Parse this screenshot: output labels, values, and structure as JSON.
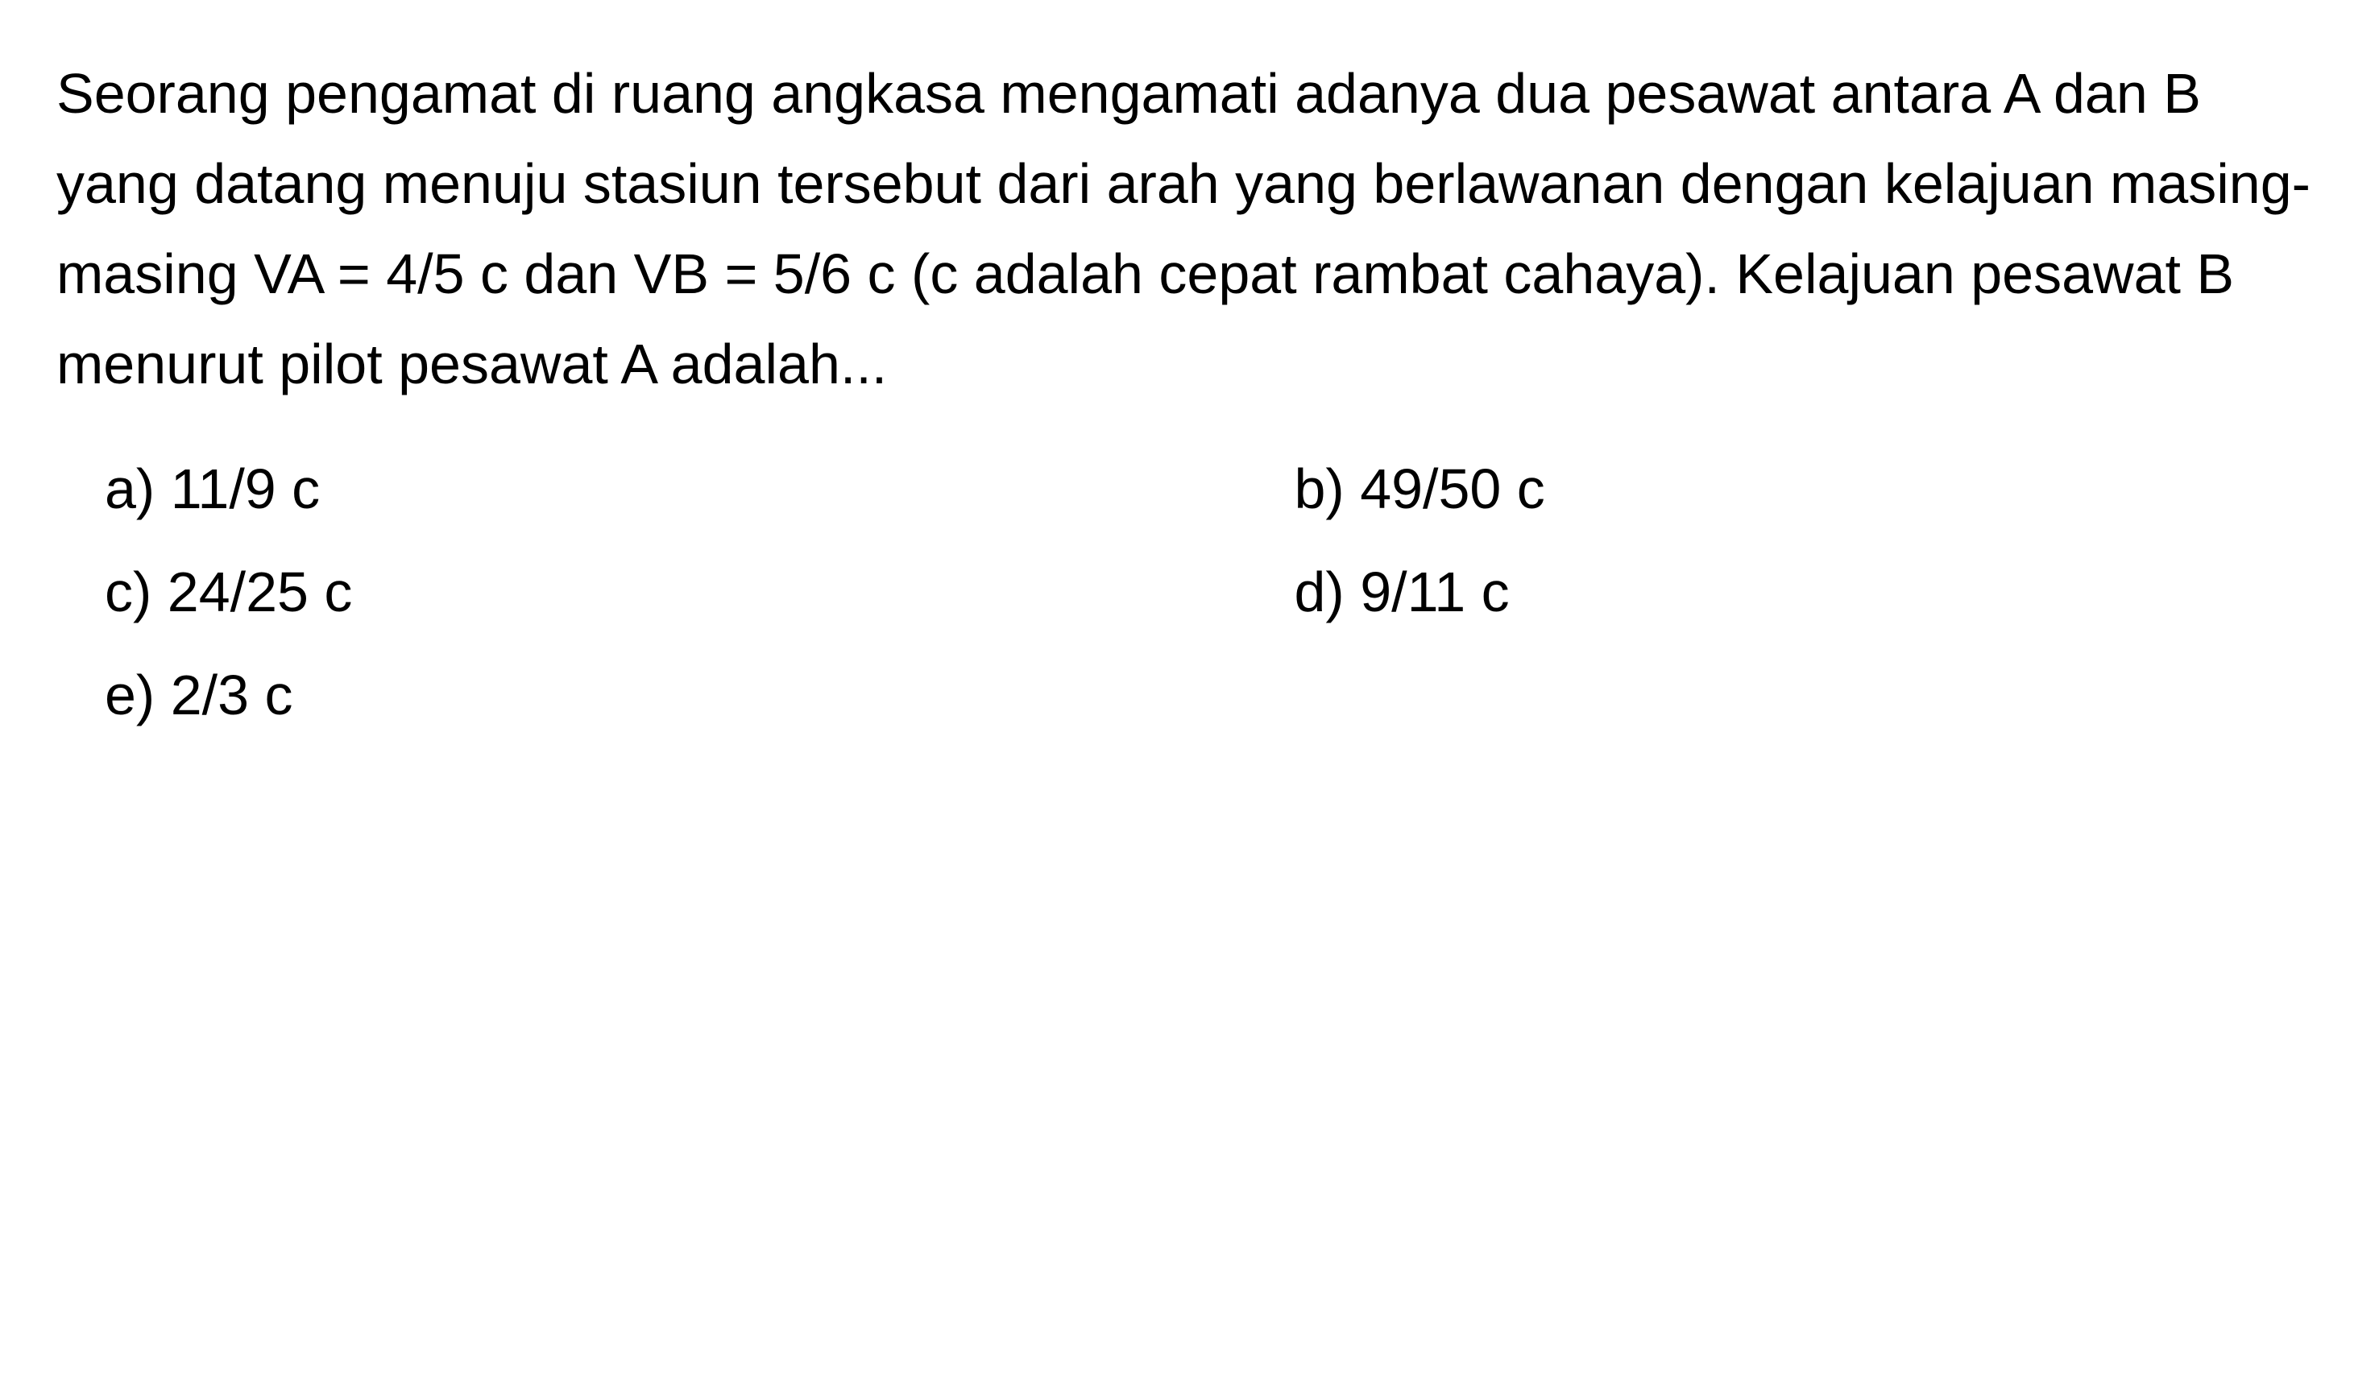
{
  "question": {
    "text": "Seorang pengamat di ruang angkasa mengamati adanya dua pesawat antara A dan B yang datang menuju stasiun tersebut dari arah yang berlawanan dengan kelajuan masing-masing VA = 4/5 c dan VB = 5/6 c (c adalah cepat rambat cahaya). Kelajuan pesawat B menurut pilot pesawat A adalah..."
  },
  "options": {
    "a": "a)  11/9 c",
    "b": "b)  49/50 c",
    "c": "c)  24/25 c",
    "d": "d)  9/11 c",
    "e": "e)  2/3 c"
  },
  "styling": {
    "background_color": "#ffffff",
    "text_color": "#000000",
    "question_fontsize": 70,
    "option_fontsize": 70,
    "font_family": "Arial, Helvetica, sans-serif",
    "line_height": 1.6
  }
}
